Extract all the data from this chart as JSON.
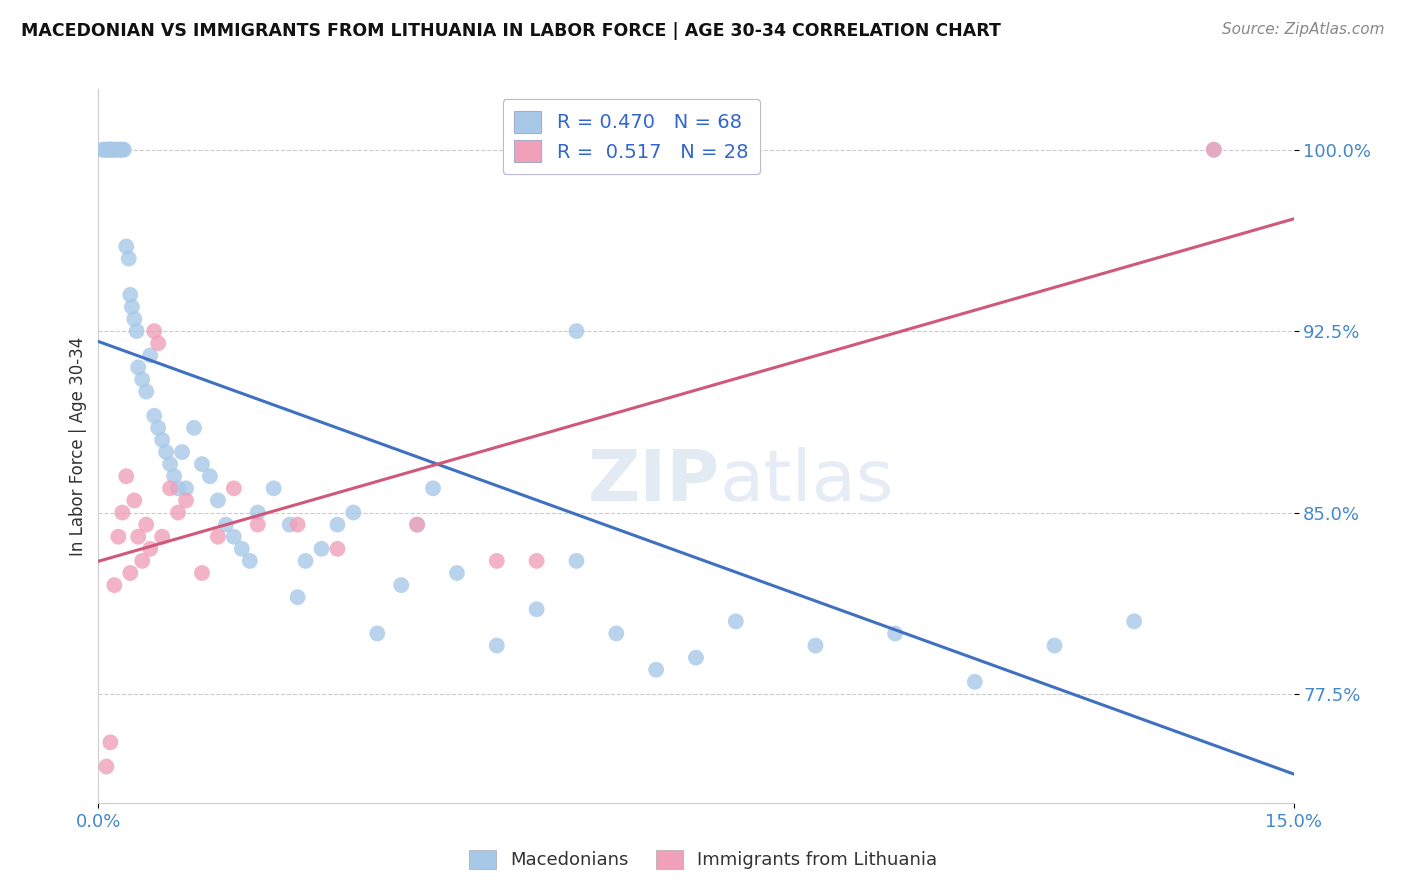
{
  "title": "MACEDONIAN VS IMMIGRANTS FROM LITHUANIA IN LABOR FORCE | AGE 30-34 CORRELATION CHART",
  "source": "Source: ZipAtlas.com",
  "ylabel": "In Labor Force | Age 30-34",
  "xlim": [
    0.0,
    15.0
  ],
  "ylim": [
    73.0,
    102.5
  ],
  "yticks": [
    77.5,
    85.0,
    92.5,
    100.0
  ],
  "ytick_labels": [
    "77.5%",
    "85.0%",
    "92.5%",
    "100.0%"
  ],
  "xtick_labels": [
    "0.0%",
    "15.0%"
  ],
  "blue_R": 0.47,
  "blue_N": 68,
  "pink_R": 0.517,
  "pink_N": 28,
  "blue_color": "#a8c8e8",
  "pink_color": "#f0a0b8",
  "blue_line_color": "#4070c0",
  "pink_line_color": "#d05878",
  "legend_blue_label": "Macedonians",
  "legend_pink_label": "Immigrants from Lithuania",
  "blue_x": [
    0.05,
    0.08,
    0.1,
    0.12,
    0.14,
    0.15,
    0.16,
    0.18,
    0.2,
    0.22,
    0.25,
    0.28,
    0.3,
    0.32,
    0.35,
    0.38,
    0.4,
    0.42,
    0.45,
    0.48,
    0.5,
    0.55,
    0.6,
    0.65,
    0.7,
    0.75,
    0.8,
    0.85,
    0.9,
    0.95,
    1.0,
    1.05,
    1.1,
    1.2,
    1.3,
    1.4,
    1.5,
    1.6,
    1.7,
    1.8,
    1.9,
    2.0,
    2.2,
    2.4,
    2.6,
    2.8,
    3.0,
    3.2,
    3.5,
    3.8,
    4.0,
    4.2,
    4.5,
    5.0,
    5.5,
    6.0,
    6.5,
    7.0,
    7.5,
    8.0,
    9.0,
    10.0,
    11.0,
    12.0,
    13.0,
    14.0,
    2.5,
    6.0
  ],
  "blue_y": [
    100.0,
    100.0,
    100.0,
    100.0,
    100.0,
    100.0,
    100.0,
    100.0,
    100.0,
    100.0,
    100.0,
    100.0,
    100.0,
    100.0,
    96.0,
    95.5,
    94.0,
    93.5,
    93.0,
    92.5,
    91.0,
    90.5,
    90.0,
    91.5,
    89.0,
    88.5,
    88.0,
    87.5,
    87.0,
    86.5,
    86.0,
    87.5,
    86.0,
    88.5,
    87.0,
    86.5,
    85.5,
    84.5,
    84.0,
    83.5,
    83.0,
    85.0,
    86.0,
    84.5,
    83.0,
    83.5,
    84.5,
    85.0,
    80.0,
    82.0,
    84.5,
    86.0,
    82.5,
    79.5,
    81.0,
    83.0,
    80.0,
    78.5,
    79.0,
    80.5,
    79.5,
    80.0,
    78.0,
    79.5,
    80.5,
    100.0,
    81.5,
    92.5
  ],
  "pink_x": [
    0.1,
    0.15,
    0.2,
    0.25,
    0.3,
    0.35,
    0.4,
    0.45,
    0.5,
    0.55,
    0.6,
    0.65,
    0.7,
    0.75,
    0.8,
    0.9,
    1.0,
    1.1,
    1.3,
    1.5,
    1.7,
    2.0,
    2.5,
    3.0,
    4.0,
    5.0,
    5.5,
    14.0
  ],
  "pink_y": [
    74.5,
    75.5,
    82.0,
    84.0,
    85.0,
    86.5,
    82.5,
    85.5,
    84.0,
    83.0,
    84.5,
    83.5,
    92.5,
    92.0,
    84.0,
    86.0,
    85.0,
    85.5,
    82.5,
    84.0,
    86.0,
    84.5,
    84.5,
    83.5,
    84.5,
    83.0,
    83.0,
    100.0
  ]
}
